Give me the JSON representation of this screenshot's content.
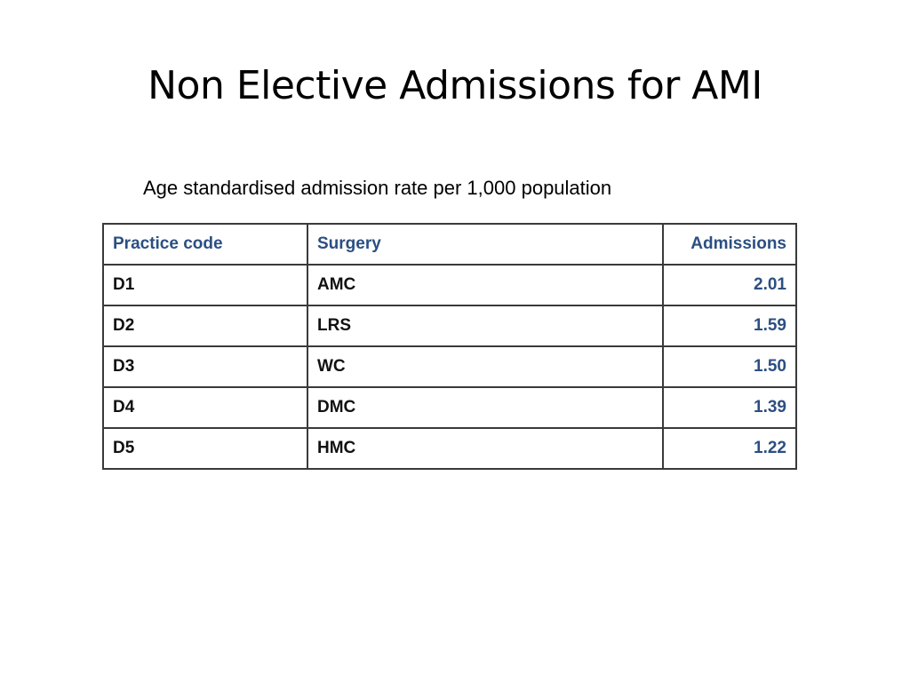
{
  "slide": {
    "title": "Non Elective Admissions for AMI",
    "subtitle": "Age standardised admission rate per 1,000 population"
  },
  "table": {
    "headers": [
      "Practice code",
      "Surgery",
      "Admissions"
    ],
    "rows": [
      [
        "D1",
        "AMC",
        "2.01"
      ],
      [
        "D2",
        "LRS",
        "1.59"
      ],
      [
        "D3",
        "WC",
        "1.50"
      ],
      [
        "D4",
        "DMC",
        "1.39"
      ],
      [
        "D5",
        "HMC",
        "1.22"
      ]
    ]
  },
  "colors": {
    "header_text": "#2b4f82",
    "value_text": "#2b4f82",
    "border": "#3a3a3a"
  }
}
